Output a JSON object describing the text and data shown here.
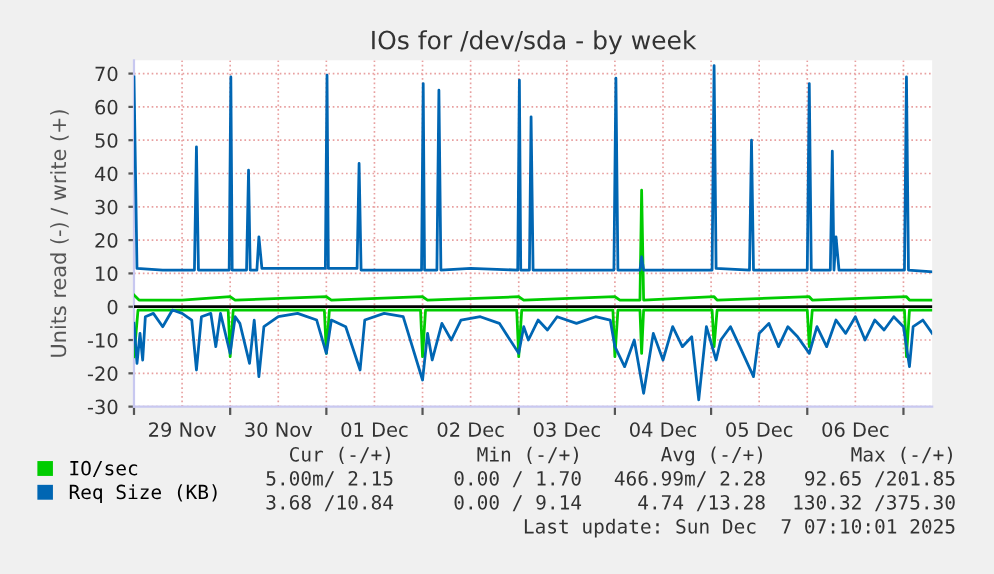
{
  "chart_data": {
    "type": "line",
    "title": "IOs for /dev/sda - by week",
    "ylabel": "Units read (-) / write (+)",
    "xlim": [
      "2025-11-29T00:00",
      "2025-12-07T07:10"
    ],
    "ylim": [
      -30,
      74
    ],
    "xticks": [
      {
        "value": "2025-11-29T00:00",
        "label": null
      },
      {
        "value": "2025-11-29T12:00",
        "label": "29 Nov"
      },
      {
        "value": "2025-11-30T00:00",
        "label": null
      },
      {
        "value": "2025-11-30T12:00",
        "label": "30 Nov"
      },
      {
        "value": "2025-12-01T00:00",
        "label": null
      },
      {
        "value": "2025-12-01T12:00",
        "label": "01 Dec"
      },
      {
        "value": "2025-12-02T00:00",
        "label": null
      },
      {
        "value": "2025-12-02T12:00",
        "label": "02 Dec"
      },
      {
        "value": "2025-12-03T00:00",
        "label": null
      },
      {
        "value": "2025-12-03T12:00",
        "label": "03 Dec"
      },
      {
        "value": "2025-12-04T00:00",
        "label": null
      },
      {
        "value": "2025-12-04T12:00",
        "label": "04 Dec"
      },
      {
        "value": "2025-12-05T00:00",
        "label": null
      },
      {
        "value": "2025-12-05T12:00",
        "label": "05 Dec"
      },
      {
        "value": "2025-12-06T00:00",
        "label": null
      },
      {
        "value": "2025-12-06T12:00",
        "label": "06 Dec"
      },
      {
        "value": "2025-12-07T00:00",
        "label": null
      }
    ],
    "yticks": [
      -30,
      -20,
      -10,
      0,
      10,
      20,
      30,
      40,
      50,
      60,
      70
    ],
    "grid": true,
    "legend": "bottom",
    "line_style": "solid",
    "ref_lines": [
      {
        "axis": "y",
        "value": 0,
        "color": "#000000"
      }
    ],
    "series": [
      {
        "name": "IO/sec",
        "color": "#00cc00",
        "x": [
          "2025-11-29T00:00",
          "2025-11-29T01:15",
          "2025-11-29T12:00",
          "2025-11-30T00:00",
          "2025-11-30T01:15",
          "2025-12-01T00:00",
          "2025-12-01T01:15",
          "2025-12-02T00:00",
          "2025-12-02T01:15",
          "2025-12-03T00:00",
          "2025-12-03T01:15",
          "2025-12-04T00:00",
          "2025-12-04T01:15",
          "2025-12-04T06:15",
          "2025-12-04T06:40",
          "2025-12-04T07:10",
          "2025-12-05T00:45",
          "2025-12-05T01:30",
          "2025-12-06T00:30",
          "2025-12-06T01:15",
          "2025-12-07T00:45",
          "2025-12-07T01:30",
          "2025-12-07T07:10"
        ],
        "values": [
          3.5,
          2,
          2,
          3,
          2,
          3,
          2,
          3,
          2,
          3,
          2,
          3,
          2,
          2,
          35,
          2,
          3,
          2,
          3,
          2,
          3,
          2,
          2
        ]
      },
      {
        "color": "#00cc00",
        "x": [
          "2025-11-29T00:00",
          "2025-11-29T01:00",
          "2025-11-29T23:30",
          "2025-11-30T00:00",
          "2025-11-30T00:45",
          "2025-11-30T23:30",
          "2025-12-01T00:00",
          "2025-12-01T00:45",
          "2025-12-01T23:30",
          "2025-12-02T00:00",
          "2025-12-02T00:45",
          "2025-12-02T23:30",
          "2025-12-03T00:00",
          "2025-12-03T00:45",
          "2025-12-03T23:30",
          "2025-12-04T00:00",
          "2025-12-04T00:45",
          "2025-12-04T06:15",
          "2025-12-04T06:40",
          "2025-12-04T07:10",
          "2025-12-05T00:15",
          "2025-12-05T00:45",
          "2025-12-05T01:30",
          "2025-12-06T00:00",
          "2025-12-06T00:30",
          "2025-12-06T01:15",
          "2025-12-07T00:15",
          "2025-12-07T00:45",
          "2025-12-07T01:30",
          "2025-12-07T07:10"
        ],
        "values": [
          -15,
          -1,
          -1,
          -15,
          -1,
          -1,
          -14,
          -1,
          -1,
          -15,
          -1,
          -1,
          -15,
          -1,
          -1,
          -15,
          -1,
          -1,
          -14,
          -1,
          -1,
          -12,
          -1,
          -1,
          -12,
          -1,
          -1,
          -15,
          -1,
          -1
        ]
      },
      {
        "name": "Req Size (KB)",
        "color": "#0066b3",
        "x": [
          "2025-11-29T00:00",
          "2025-11-29T00:45",
          "2025-11-29T07:10",
          "2025-11-29T14:25",
          "2025-11-29T15:05",
          "2025-11-29T15:35",
          "2025-11-29T16:05",
          "2025-11-29T21:35",
          "2025-11-29T23:45",
          "2025-11-30T00:10",
          "2025-11-30T00:30",
          "2025-11-30T04:05",
          "2025-11-30T04:35",
          "2025-11-30T05:00",
          "2025-11-30T06:40",
          "2025-11-30T07:10",
          "2025-11-30T07:55",
          "2025-11-30T14:25",
          "2025-11-30T23:45",
          "2025-12-01T00:10",
          "2025-12-01T00:30",
          "2025-12-01T07:40",
          "2025-12-01T08:10",
          "2025-12-01T08:40",
          "2025-12-01T16:50",
          "2025-12-01T23:45",
          "2025-12-02T00:10",
          "2025-12-02T00:30",
          "2025-12-02T03:35",
          "2025-12-02T04:05",
          "2025-12-02T04:35",
          "2025-12-02T12:00",
          "2025-12-02T23:45",
          "2025-12-03T00:10",
          "2025-12-03T00:30",
          "2025-12-03T02:40",
          "2025-12-03T03:05",
          "2025-12-03T03:35",
          "2025-12-03T12:00",
          "2025-12-03T23:45",
          "2025-12-04T00:15",
          "2025-12-04T00:45",
          "2025-12-04T06:15",
          "2025-12-04T06:40",
          "2025-12-04T07:10",
          "2025-12-04T14:25",
          "2025-12-05T00:15",
          "2025-12-05T00:45",
          "2025-12-05T01:15",
          "2025-12-05T09:35",
          "2025-12-05T10:05",
          "2025-12-05T10:35",
          "2025-12-05T19:10",
          "2025-12-06T00:00",
          "2025-12-06T00:30",
          "2025-12-06T01:00",
          "2025-12-06T05:45",
          "2025-12-06T06:15",
          "2025-12-06T06:40",
          "2025-12-06T07:10",
          "2025-12-06T07:55",
          "2025-12-06T16:50",
          "2025-12-07T00:15",
          "2025-12-07T00:45",
          "2025-12-07T01:15",
          "2025-12-07T07:10"
        ],
        "values": [
          69,
          11.5,
          11,
          11,
          11,
          48,
          11,
          11,
          11,
          69,
          11,
          11,
          41,
          11,
          11,
          21,
          11.5,
          11.5,
          11.5,
          69.5,
          11.5,
          11.5,
          43,
          11,
          11,
          11,
          67,
          11,
          11,
          65,
          11,
          11.5,
          11,
          68,
          11,
          11,
          57,
          11,
          11,
          11,
          68.6,
          11,
          11,
          15,
          11,
          11,
          11,
          72.4,
          11.5,
          11,
          50,
          11,
          11,
          11,
          67,
          11,
          11,
          46.7,
          11,
          21,
          11,
          11,
          11,
          69,
          11,
          10.5
        ]
      },
      {
        "color": "#0066b3",
        "x": [
          "2025-11-29T00:00",
          "2025-11-29T00:45",
          "2025-11-29T01:30",
          "2025-11-29T02:10",
          "2025-11-29T02:50",
          "2025-11-29T04:50",
          "2025-11-29T07:10",
          "2025-11-29T09:35",
          "2025-11-29T12:00",
          "2025-11-29T14:25",
          "2025-11-29T15:35",
          "2025-11-29T16:50",
          "2025-11-29T19:10",
          "2025-11-29T20:25",
          "2025-11-29T21:35",
          "2025-11-30T00:00",
          "2025-11-30T01:15",
          "2025-11-30T02:25",
          "2025-11-30T04:50",
          "2025-11-30T06:00",
          "2025-11-30T07:10",
          "2025-11-30T08:25",
          "2025-11-30T12:00",
          "2025-11-30T16:50",
          "2025-11-30T21:35",
          "2025-12-01T00:00",
          "2025-12-01T01:15",
          "2025-12-01T04:50",
          "2025-12-01T08:25",
          "2025-12-01T09:35",
          "2025-12-01T14:25",
          "2025-12-01T19:10",
          "2025-12-02T00:00",
          "2025-12-02T01:15",
          "2025-12-02T02:25",
          "2025-12-02T04:50",
          "2025-12-02T07:10",
          "2025-12-02T09:35",
          "2025-12-02T14:25",
          "2025-12-02T19:10",
          "2025-12-03T00:00",
          "2025-12-03T01:15",
          "2025-12-03T02:25",
          "2025-12-03T04:50",
          "2025-12-03T07:10",
          "2025-12-03T09:35",
          "2025-12-03T14:25",
          "2025-12-03T19:10",
          "2025-12-03T22:50",
          "2025-12-04T00:00",
          "2025-12-04T02:25",
          "2025-12-04T04:50",
          "2025-12-04T07:10",
          "2025-12-04T09:35",
          "2025-12-04T12:00",
          "2025-12-04T14:25",
          "2025-12-04T16:50",
          "2025-12-04T19:10",
          "2025-12-04T20:55",
          "2025-12-04T22:50",
          "2025-12-05T01:15",
          "2025-12-05T02:25",
          "2025-12-05T04:50",
          "2025-12-05T07:10",
          "2025-12-05T10:35",
          "2025-12-05T12:00",
          "2025-12-05T14:25",
          "2025-12-05T16:50",
          "2025-12-05T19:10",
          "2025-12-05T21:35",
          "2025-12-06T00:30",
          "2025-12-06T02:25",
          "2025-12-06T04:50",
          "2025-12-06T07:10",
          "2025-12-06T09:35",
          "2025-12-06T12:00",
          "2025-12-06T14:25",
          "2025-12-06T16:50",
          "2025-12-06T19:10",
          "2025-12-06T21:35",
          "2025-12-07T00:00",
          "2025-12-07T01:30",
          "2025-12-07T02:25",
          "2025-12-07T04:50",
          "2025-12-07T07:10"
        ],
        "values": [
          -5,
          -17,
          -8,
          -16,
          -3,
          -2,
          -6,
          -1,
          -2,
          -4,
          -19,
          -3,
          -2,
          -12,
          -2,
          -14,
          -3,
          -5,
          -17,
          -4,
          -21,
          -6,
          -3,
          -2,
          -4,
          -14,
          -4,
          -6,
          -19,
          -4,
          -2,
          -3,
          -22,
          -8,
          -16,
          -5,
          -10,
          -4,
          -3,
          -5,
          -14,
          -6,
          -10,
          -4,
          -7,
          -3,
          -5,
          -3,
          -4,
          -12,
          -18,
          -10,
          -26,
          -8,
          -16,
          -6,
          -12,
          -9,
          -28,
          -6,
          -16,
          -10,
          -6,
          -12,
          -21,
          -8,
          -5,
          -12,
          -6,
          -9,
          -14,
          -6,
          -12,
          -4,
          -8,
          -3,
          -10,
          -4,
          -7,
          -3,
          -6,
          -18,
          -6,
          -4,
          -8
        ]
      }
    ],
    "annotations": [
      "Cur (-/+)",
      "Min (-/+)",
      "Avg (-/+)",
      "Max (-/+)",
      "5.00m/ 2.15",
      "0.00 / 1.70",
      "466.99m/ 2.28",
      "92.65 /201.85",
      "3.68 /10.84",
      "0.00 / 9.14",
      "4.74 /13.28",
      "130.32 /375.30",
      "Last update: Sun Dec  7 07:10:01 2025"
    ]
  }
}
